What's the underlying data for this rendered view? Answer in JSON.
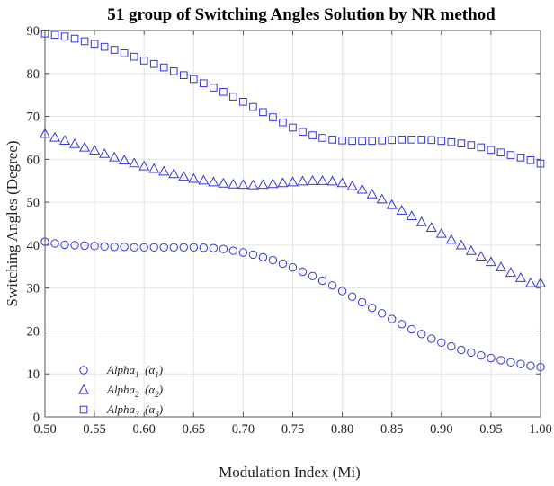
{
  "chart_data": {
    "type": "scatter",
    "title": "51 group of Switching Angles Solution by NR method",
    "xlabel": "Modulation Index (Mi)",
    "ylabel": "Switching Angles (Degree)",
    "xlim": [
      0.5,
      1.0
    ],
    "ylim": [
      0,
      90
    ],
    "xticks": [
      "0.50",
      "0.55",
      "0.60",
      "0.65",
      "0.70",
      "0.75",
      "0.80",
      "0.85",
      "0.90",
      "0.95",
      "1.00"
    ],
    "yticks": [
      "0",
      "10",
      "20",
      "30",
      "40",
      "50",
      "60",
      "70",
      "80",
      "90"
    ],
    "grid": true,
    "legend_position": "bottom-left",
    "colors": {
      "marker": "#3333e0"
    },
    "x": [
      0.5,
      0.51,
      0.52,
      0.53,
      0.54,
      0.55,
      0.56,
      0.57,
      0.58,
      0.59,
      0.6,
      0.61,
      0.62,
      0.63,
      0.64,
      0.65,
      0.66,
      0.67,
      0.68,
      0.69,
      0.7,
      0.71,
      0.72,
      0.73,
      0.74,
      0.75,
      0.76,
      0.77,
      0.78,
      0.79,
      0.8,
      0.81,
      0.82,
      0.83,
      0.84,
      0.85,
      0.86,
      0.87,
      0.88,
      0.89,
      0.9,
      0.91,
      0.92,
      0.93,
      0.94,
      0.95,
      0.96,
      0.97,
      0.98,
      0.99,
      1.0
    ],
    "series": [
      {
        "name": "Alpha",
        "sub": "1",
        "greek": "α",
        "marker": "circle",
        "values": [
          40.8,
          40.4,
          40.1,
          40.0,
          39.9,
          39.8,
          39.7,
          39.6,
          39.6,
          39.5,
          39.5,
          39.5,
          39.5,
          39.5,
          39.5,
          39.5,
          39.4,
          39.3,
          39.1,
          38.7,
          38.3,
          37.8,
          37.2,
          36.5,
          35.7,
          34.8,
          33.8,
          32.8,
          31.7,
          30.6,
          29.3,
          28.0,
          26.7,
          25.4,
          24.1,
          22.8,
          21.6,
          20.4,
          19.3,
          18.2,
          17.3,
          16.4,
          15.6,
          15.0,
          14.3,
          13.7,
          13.2,
          12.7,
          12.3,
          11.9,
          11.6
        ]
      },
      {
        "name": "Alpha",
        "sub": "2",
        "greek": "α",
        "marker": "triangle",
        "values": [
          66.0,
          65.1,
          64.4,
          63.6,
          62.8,
          62.1,
          61.3,
          60.5,
          59.8,
          59.1,
          58.4,
          57.8,
          57.2,
          56.6,
          56.0,
          55.5,
          55.1,
          54.7,
          54.4,
          54.2,
          54.1,
          54.0,
          54.1,
          54.3,
          54.5,
          54.7,
          54.9,
          55.0,
          55.0,
          54.9,
          54.5,
          53.8,
          53.0,
          51.9,
          50.7,
          49.4,
          48.1,
          46.8,
          45.4,
          44.1,
          42.7,
          41.3,
          40.0,
          38.7,
          37.4,
          36.1,
          34.9,
          33.6,
          32.4,
          31.2,
          31.2
        ]
      },
      {
        "name": "Alpha",
        "sub": "3",
        "greek": "α",
        "marker": "square",
        "values": [
          89.3,
          89.0,
          88.6,
          88.1,
          87.5,
          86.9,
          86.2,
          85.5,
          84.7,
          83.9,
          83.0,
          82.2,
          81.4,
          80.5,
          79.6,
          78.7,
          77.7,
          76.7,
          75.7,
          74.6,
          73.4,
          72.2,
          71.0,
          69.8,
          68.6,
          67.4,
          66.4,
          65.6,
          65.0,
          64.6,
          64.4,
          64.3,
          64.3,
          64.3,
          64.4,
          64.5,
          64.6,
          64.6,
          64.6,
          64.5,
          64.3,
          64.0,
          63.7,
          63.3,
          62.8,
          62.2,
          61.6,
          61.0,
          60.4,
          59.8,
          59.0
        ]
      }
    ]
  }
}
